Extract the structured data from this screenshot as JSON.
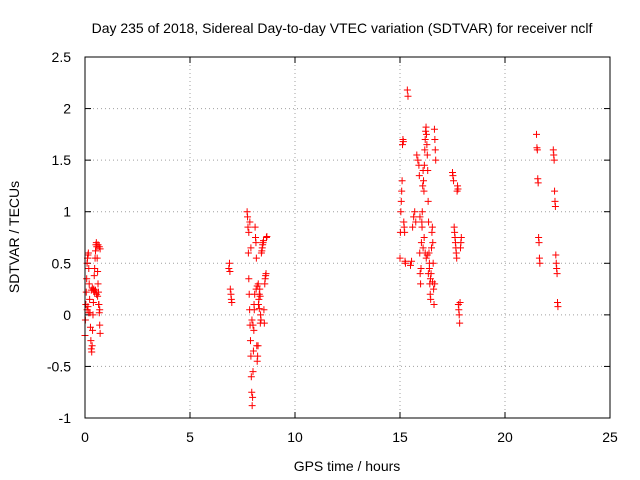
{
  "chart_data": {
    "type": "scatter",
    "title": "Day 235 of 2018, Sidereal Day-to-day VTEC variation (SDTVAR) for receiver nclf",
    "xlabel": "GPS time / hours",
    "ylabel": "SDTVAR / TECUs",
    "xlim": [
      0,
      25
    ],
    "ylim": [
      -1,
      2.5
    ],
    "grid": true,
    "marker": "+",
    "x_ticks": [
      0,
      5,
      10,
      15,
      20,
      25
    ],
    "y_ticks": [
      -1,
      -0.5,
      0,
      0.5,
      1,
      1.5,
      2,
      2.5
    ],
    "x_tick_labels": [
      "0",
      "5",
      "10",
      "15",
      "20",
      "25"
    ],
    "y_tick_labels": [
      "-1",
      "-0.5",
      "0",
      "0.5",
      "1",
      "1.5",
      "2",
      "2.5"
    ],
    "series": [
      {
        "name": "SDTVAR",
        "color": "#ff0000",
        "points": [
          [
            0.0,
            -0.2
          ],
          [
            0.02,
            -0.05
          ],
          [
            0.04,
            0.1
          ],
          [
            0.06,
            0.22
          ],
          [
            0.08,
            0.35
          ],
          [
            0.1,
            0.5
          ],
          [
            0.12,
            0.55
          ],
          [
            0.14,
            0.58
          ],
          [
            0.16,
            0.6
          ],
          [
            0.18,
            0.45
          ],
          [
            0.2,
            0.3
          ],
          [
            0.22,
            0.15
          ],
          [
            0.24,
            0.02
          ],
          [
            0.26,
            -0.12
          ],
          [
            0.28,
            -0.25
          ],
          [
            0.3,
            -0.33
          ],
          [
            0.32,
            -0.36
          ],
          [
            0.34,
            -0.3
          ],
          [
            0.36,
            -0.15
          ],
          [
            0.38,
            0.0
          ],
          [
            0.4,
            0.12
          ],
          [
            0.42,
            0.25
          ],
          [
            0.44,
            0.38
          ],
          [
            0.46,
            0.45
          ],
          [
            0.48,
            0.55
          ],
          [
            0.5,
            0.62
          ],
          [
            0.52,
            0.68
          ],
          [
            0.54,
            0.7
          ],
          [
            0.56,
            0.66
          ],
          [
            0.58,
            0.55
          ],
          [
            0.6,
            0.42
          ],
          [
            0.62,
            0.3
          ],
          [
            0.64,
            0.22
          ],
          [
            0.66,
            0.1
          ],
          [
            0.68,
            0.02
          ],
          [
            0.7,
            -0.1
          ],
          [
            0.72,
            -0.18
          ],
          [
            0.3,
            0.24
          ],
          [
            0.35,
            0.26
          ],
          [
            0.4,
            0.24
          ],
          [
            0.45,
            0.22
          ],
          [
            0.5,
            0.24
          ],
          [
            0.55,
            0.2
          ],
          [
            0.6,
            0.18
          ],
          [
            0.65,
            0.1
          ],
          [
            0.7,
            0.05
          ],
          [
            0.62,
            0.68
          ],
          [
            0.68,
            0.66
          ],
          [
            0.72,
            0.64
          ],
          [
            0.1,
            0.05
          ],
          [
            0.14,
            0.08
          ],
          [
            0.18,
            0.02
          ],
          [
            6.85,
            0.45
          ],
          [
            6.88,
            0.5
          ],
          [
            6.9,
            0.42
          ],
          [
            6.92,
            0.25
          ],
          [
            6.95,
            0.2
          ],
          [
            6.97,
            0.15
          ],
          [
            6.99,
            0.12
          ],
          [
            7.72,
            1.0
          ],
          [
            7.74,
            0.95
          ],
          [
            7.76,
            0.85
          ],
          [
            7.78,
            0.6
          ],
          [
            7.8,
            0.35
          ],
          [
            7.82,
            0.2
          ],
          [
            7.84,
            0.05
          ],
          [
            7.86,
            -0.1
          ],
          [
            7.88,
            -0.25
          ],
          [
            7.9,
            -0.4
          ],
          [
            7.92,
            -0.6
          ],
          [
            7.94,
            -0.75
          ],
          [
            7.96,
            -0.88
          ],
          [
            7.98,
            -0.8
          ],
          [
            8.0,
            -0.55
          ],
          [
            8.02,
            -0.35
          ],
          [
            8.04,
            -0.15
          ],
          [
            8.06,
            0.05
          ],
          [
            8.08,
            0.2
          ],
          [
            8.1,
            0.85
          ],
          [
            8.12,
            0.75
          ],
          [
            8.14,
            0.7
          ],
          [
            8.16,
            0.55
          ],
          [
            8.18,
            -0.3
          ],
          [
            8.2,
            -0.45
          ],
          [
            8.22,
            -0.4
          ],
          [
            8.24,
            -0.3
          ],
          [
            8.26,
            0.1
          ],
          [
            8.28,
            0.15
          ],
          [
            8.3,
            0.2
          ],
          [
            8.32,
            0.25
          ],
          [
            8.34,
            0.18
          ],
          [
            8.36,
            0.0
          ],
          [
            8.38,
            -0.05
          ],
          [
            8.4,
            0.6
          ],
          [
            8.42,
            0.62
          ],
          [
            8.44,
            0.65
          ],
          [
            8.46,
            0.68
          ],
          [
            8.48,
            0.7
          ],
          [
            8.5,
            0.72
          ],
          [
            8.52,
            0.05
          ],
          [
            8.54,
            -0.08
          ],
          [
            8.56,
            0.3
          ],
          [
            8.58,
            0.35
          ],
          [
            8.6,
            0.38
          ],
          [
            8.62,
            0.4
          ],
          [
            8.64,
            0.75
          ],
          [
            8.66,
            0.76
          ],
          [
            7.8,
            0.8
          ],
          [
            7.85,
            0.9
          ],
          [
            7.9,
            0.65
          ],
          [
            7.95,
            -0.05
          ],
          [
            8.0,
            -0.1
          ],
          [
            8.05,
            0.1
          ],
          [
            8.15,
            0.25
          ],
          [
            8.2,
            0.28
          ],
          [
            8.25,
            0.3
          ],
          [
            8.3,
            0.06
          ],
          [
            8.35,
            -0.08
          ],
          [
            15.0,
            0.55
          ],
          [
            15.02,
            0.8
          ],
          [
            15.04,
            1.0
          ],
          [
            15.06,
            1.1
          ],
          [
            15.08,
            1.2
          ],
          [
            15.1,
            1.3
          ],
          [
            15.12,
            1.65
          ],
          [
            15.14,
            1.7
          ],
          [
            15.16,
            1.68
          ],
          [
            15.18,
            0.9
          ],
          [
            15.2,
            0.85
          ],
          [
            15.22,
            0.8
          ],
          [
            15.24,
            0.52
          ],
          [
            15.26,
            0.5
          ],
          [
            15.35,
            2.18
          ],
          [
            15.38,
            2.12
          ],
          [
            15.5,
            0.48
          ],
          [
            15.55,
            0.52
          ],
          [
            15.6,
            0.85
          ],
          [
            15.65,
            0.95
          ],
          [
            15.7,
            1.0
          ],
          [
            15.75,
            0.9
          ],
          [
            15.8,
            1.55
          ],
          [
            15.85,
            1.5
          ],
          [
            15.9,
            1.45
          ],
          [
            15.92,
            1.35
          ],
          [
            15.94,
            0.6
          ],
          [
            15.96,
            0.4
          ],
          [
            15.98,
            0.3
          ],
          [
            16.0,
            0.45
          ],
          [
            16.02,
            0.7
          ],
          [
            16.04,
            0.9
          ],
          [
            16.06,
            1.0
          ],
          [
            16.08,
            1.25
          ],
          [
            16.1,
            1.4
          ],
          [
            16.12,
            1.3
          ],
          [
            16.14,
            1.2
          ],
          [
            16.16,
            1.45
          ],
          [
            16.18,
            1.6
          ],
          [
            16.2,
            1.7
          ],
          [
            16.22,
            1.78
          ],
          [
            16.24,
            1.82
          ],
          [
            16.26,
            1.75
          ],
          [
            16.28,
            1.65
          ],
          [
            16.3,
            1.55
          ],
          [
            16.32,
            1.4
          ],
          [
            16.34,
            1.1
          ],
          [
            16.36,
            0.9
          ],
          [
            16.38,
            0.6
          ],
          [
            16.4,
            0.45
          ],
          [
            16.42,
            0.3
          ],
          [
            16.44,
            0.2
          ],
          [
            16.46,
            0.15
          ],
          [
            16.48,
            0.4
          ],
          [
            16.5,
            0.65
          ],
          [
            16.52,
            0.8
          ],
          [
            16.54,
            0.85
          ],
          [
            16.56,
            0.7
          ],
          [
            16.58,
            0.5
          ],
          [
            16.6,
            0.25
          ],
          [
            16.62,
            0.1
          ],
          [
            16.64,
            1.8
          ],
          [
            16.66,
            1.7
          ],
          [
            16.68,
            1.6
          ],
          [
            16.7,
            1.5
          ],
          [
            15.95,
            0.95
          ],
          [
            16.05,
            0.85
          ],
          [
            16.15,
            0.75
          ],
          [
            16.25,
            0.55
          ],
          [
            16.35,
            0.4
          ],
          [
            16.45,
            0.35
          ],
          [
            16.55,
            0.32
          ],
          [
            16.65,
            0.3
          ],
          [
            16.1,
            0.65
          ],
          [
            16.2,
            0.6
          ],
          [
            16.3,
            0.58
          ],
          [
            16.4,
            0.5
          ],
          [
            17.5,
            1.38
          ],
          [
            17.52,
            1.35
          ],
          [
            17.55,
            1.3
          ],
          [
            17.58,
            0.85
          ],
          [
            17.6,
            0.8
          ],
          [
            17.62,
            0.75
          ],
          [
            17.64,
            0.7
          ],
          [
            17.66,
            0.65
          ],
          [
            17.68,
            0.6
          ],
          [
            17.7,
            0.55
          ],
          [
            17.72,
            1.2
          ],
          [
            17.74,
            1.25
          ],
          [
            17.76,
            1.22
          ],
          [
            17.78,
            0.1
          ],
          [
            17.8,
            0.05
          ],
          [
            17.82,
            0.0
          ],
          [
            17.84,
            -0.08
          ],
          [
            17.86,
            0.12
          ],
          [
            17.88,
            0.65
          ],
          [
            17.9,
            0.7
          ],
          [
            17.92,
            0.75
          ],
          [
            21.5,
            1.75
          ],
          [
            21.52,
            1.62
          ],
          [
            21.54,
            1.6
          ],
          [
            21.56,
            1.32
          ],
          [
            21.58,
            1.28
          ],
          [
            21.6,
            0.75
          ],
          [
            21.62,
            0.7
          ],
          [
            21.64,
            0.55
          ],
          [
            21.66,
            0.5
          ],
          [
            22.3,
            1.6
          ],
          [
            22.32,
            1.55
          ],
          [
            22.34,
            1.5
          ],
          [
            22.36,
            1.2
          ],
          [
            22.38,
            1.1
          ],
          [
            22.4,
            1.05
          ],
          [
            22.42,
            0.58
          ],
          [
            22.44,
            0.5
          ],
          [
            22.46,
            0.45
          ],
          [
            22.48,
            0.4
          ],
          [
            22.5,
            0.12
          ],
          [
            22.52,
            0.08
          ]
        ]
      }
    ]
  }
}
